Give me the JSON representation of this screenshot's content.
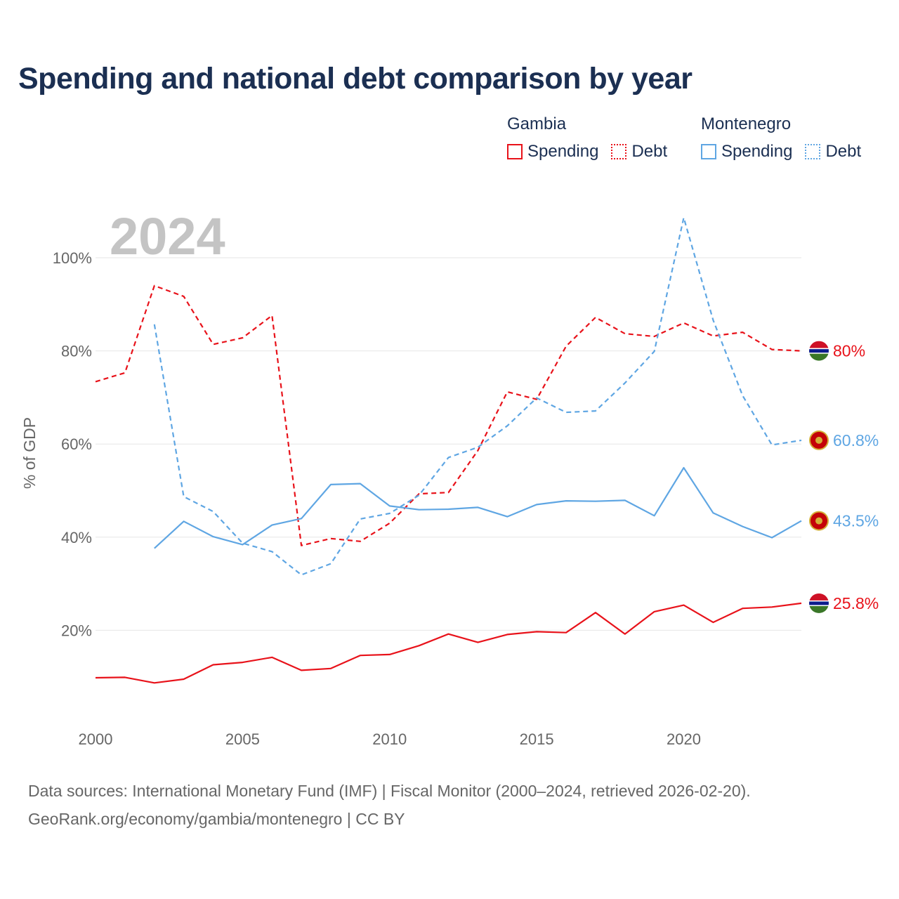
{
  "title": "Spending and national debt comparison by year",
  "legend": {
    "gambia": {
      "country": "Gambia",
      "spending": "Spending",
      "debt": "Debt"
    },
    "montenegro": {
      "country": "Montenegro",
      "spending": "Spending",
      "debt": "Debt"
    }
  },
  "colors": {
    "gambia": "#e8121a",
    "montenegro": "#5fa6e3",
    "title": "#1b2f52",
    "axis_text": "#666666",
    "grid": "#e6e6e6",
    "year_watermark": "#c4c4c4"
  },
  "chart_data": {
    "type": "line",
    "year_label": "2024",
    "ylabel": "% of GDP",
    "xlim": [
      2000,
      2024
    ],
    "ylim": [
      0,
      110
    ],
    "x_ticks": [
      2000,
      2005,
      2010,
      2015,
      2020
    ],
    "x_tick_labels": [
      "2000",
      "2005",
      "2010",
      "2015",
      "2020"
    ],
    "y_ticks": [
      20,
      40,
      60,
      80,
      100
    ],
    "y_tick_labels": [
      "20%",
      "40%",
      "60%",
      "80%",
      "100%"
    ],
    "grid": true,
    "series": [
      {
        "name": "Gambia Debt",
        "country": "Gambia",
        "metric": "Debt",
        "style": "dashed",
        "color": "#e8121a",
        "x": [
          2000,
          2001,
          2002,
          2003,
          2004,
          2005,
          2006,
          2007,
          2008,
          2009,
          2010,
          2011,
          2012,
          2013,
          2014,
          2015,
          2016,
          2017,
          2018,
          2019,
          2020,
          2021,
          2022,
          2023,
          2024
        ],
        "values": [
          73.4,
          75.3,
          94.0,
          91.7,
          81.4,
          82.8,
          87.6,
          38.2,
          39.7,
          39.1,
          43.0,
          49.3,
          49.6,
          58.6,
          71.2,
          69.6,
          81.0,
          87.2,
          83.7,
          83.1,
          86.0,
          83.2,
          84.0,
          80.3,
          80.0
        ],
        "end_label": "80%",
        "flag": "gambia"
      },
      {
        "name": "Montenegro Debt",
        "country": "Montenegro",
        "metric": "Debt",
        "style": "dashed",
        "color": "#5fa6e3",
        "x": [
          2002,
          2003,
          2004,
          2005,
          2006,
          2007,
          2008,
          2009,
          2010,
          2011,
          2012,
          2013,
          2014,
          2015,
          2016,
          2017,
          2018,
          2019,
          2020,
          2021,
          2022,
          2023,
          2024
        ],
        "values": [
          85.7,
          48.7,
          45.5,
          38.7,
          36.9,
          31.9,
          34.3,
          43.9,
          45.1,
          49.0,
          57.1,
          59.3,
          63.9,
          69.9,
          66.8,
          67.1,
          73.1,
          79.9,
          108.6,
          86.6,
          70.4,
          59.8,
          60.8
        ],
        "end_label": "60.8%",
        "flag": "montenegro"
      },
      {
        "name": "Montenegro Spending",
        "country": "Montenegro",
        "metric": "Spending",
        "style": "solid",
        "color": "#5fa6e3",
        "x": [
          2002,
          2003,
          2004,
          2005,
          2006,
          2007,
          2008,
          2009,
          2010,
          2011,
          2012,
          2013,
          2014,
          2015,
          2016,
          2017,
          2018,
          2019,
          2020,
          2021,
          2022,
          2023,
          2024
        ],
        "values": [
          37.6,
          43.4,
          40.1,
          38.4,
          42.6,
          44.0,
          51.3,
          51.5,
          46.7,
          45.9,
          46.0,
          46.4,
          44.4,
          47.0,
          47.8,
          47.7,
          47.9,
          44.6,
          54.9,
          45.2,
          42.3,
          39.9,
          43.5
        ],
        "end_label": "43.5%",
        "flag": "montenegro"
      },
      {
        "name": "Gambia Spending",
        "country": "Gambia",
        "metric": "Spending",
        "style": "solid",
        "color": "#e8121a",
        "x": [
          2000,
          2001,
          2002,
          2003,
          2004,
          2005,
          2006,
          2007,
          2008,
          2009,
          2010,
          2011,
          2012,
          2013,
          2014,
          2015,
          2016,
          2017,
          2018,
          2019,
          2020,
          2021,
          2022,
          2023,
          2024
        ],
        "values": [
          9.8,
          9.9,
          8.7,
          9.5,
          12.6,
          13.1,
          14.2,
          11.4,
          11.8,
          14.6,
          14.8,
          16.7,
          19.2,
          17.4,
          19.1,
          19.7,
          19.5,
          23.8,
          19.2,
          24.0,
          25.4,
          21.7,
          24.7,
          25.0,
          25.8
        ],
        "end_label": "25.8%",
        "flag": "gambia"
      }
    ]
  },
  "footer": {
    "line1": "Data sources: International Monetary Fund (IMF) | Fiscal Monitor (2000–2024, retrieved 2026-02-20).",
    "line2": "GeoRank.org/economy/gambia/montenegro | CC BY"
  }
}
